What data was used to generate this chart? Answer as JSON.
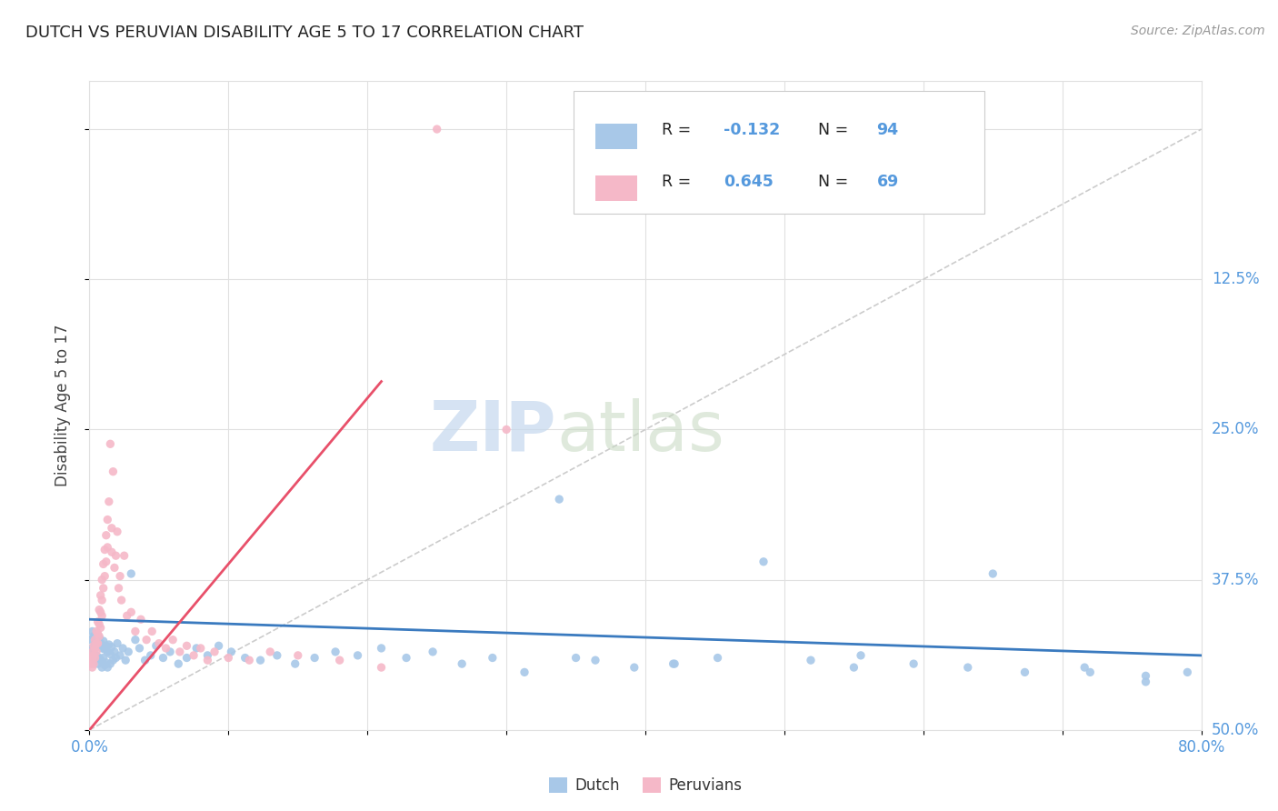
{
  "title": "DUTCH VS PERUVIAN DISABILITY AGE 5 TO 17 CORRELATION CHART",
  "source": "Source: ZipAtlas.com",
  "ylabel": "Disability Age 5 to 17",
  "xlim": [
    0.0,
    0.8
  ],
  "ylim": [
    0.0,
    0.54
  ],
  "dutch_color": "#a8c8e8",
  "peruvian_color": "#f5b8c8",
  "dutch_line_color": "#3a7abf",
  "peruvian_line_color": "#e8506a",
  "bg_color": "#ffffff",
  "grid_color": "#e0e0e0",
  "tick_color": "#5599dd",
  "dutch_scatter_x": [
    0.001,
    0.002,
    0.002,
    0.003,
    0.003,
    0.004,
    0.004,
    0.005,
    0.005,
    0.006,
    0.006,
    0.007,
    0.007,
    0.008,
    0.008,
    0.009,
    0.009,
    0.01,
    0.01,
    0.011,
    0.011,
    0.012,
    0.012,
    0.013,
    0.013,
    0.014,
    0.015,
    0.015,
    0.016,
    0.017,
    0.018,
    0.019,
    0.02,
    0.022,
    0.024,
    0.026,
    0.028,
    0.03,
    0.033,
    0.036,
    0.04,
    0.044,
    0.048,
    0.053,
    0.058,
    0.064,
    0.07,
    0.077,
    0.085,
    0.093,
    0.102,
    0.112,
    0.123,
    0.135,
    0.148,
    0.162,
    0.177,
    0.193,
    0.21,
    0.228,
    0.247,
    0.268,
    0.29,
    0.313,
    0.338,
    0.364,
    0.392,
    0.421,
    0.452,
    0.485,
    0.519,
    0.555,
    0.593,
    0.632,
    0.673,
    0.716,
    0.76,
    0.79,
    0.35,
    0.42,
    0.55,
    0.65,
    0.72,
    0.76
  ],
  "dutch_scatter_y": [
    0.075,
    0.082,
    0.068,
    0.078,
    0.065,
    0.071,
    0.058,
    0.073,
    0.062,
    0.07,
    0.055,
    0.077,
    0.06,
    0.072,
    0.058,
    0.068,
    0.052,
    0.074,
    0.06,
    0.067,
    0.054,
    0.07,
    0.056,
    0.065,
    0.052,
    0.071,
    0.063,
    0.055,
    0.069,
    0.058,
    0.065,
    0.06,
    0.072,
    0.062,
    0.068,
    0.058,
    0.065,
    0.13,
    0.075,
    0.068,
    0.058,
    0.062,
    0.07,
    0.06,
    0.065,
    0.055,
    0.06,
    0.068,
    0.062,
    0.07,
    0.065,
    0.06,
    0.058,
    0.062,
    0.055,
    0.06,
    0.065,
    0.062,
    0.068,
    0.06,
    0.065,
    0.055,
    0.06,
    0.048,
    0.192,
    0.058,
    0.052,
    0.055,
    0.06,
    0.14,
    0.058,
    0.062,
    0.055,
    0.052,
    0.048,
    0.052,
    0.04,
    0.048,
    0.06,
    0.055,
    0.052,
    0.13,
    0.048,
    0.045
  ],
  "peruvian_scatter_x": [
    0.001,
    0.001,
    0.002,
    0.002,
    0.002,
    0.003,
    0.003,
    0.003,
    0.004,
    0.004,
    0.004,
    0.005,
    0.005,
    0.005,
    0.006,
    0.006,
    0.006,
    0.007,
    0.007,
    0.007,
    0.008,
    0.008,
    0.008,
    0.009,
    0.009,
    0.009,
    0.01,
    0.01,
    0.011,
    0.011,
    0.012,
    0.012,
    0.013,
    0.013,
    0.014,
    0.015,
    0.016,
    0.016,
    0.017,
    0.018,
    0.019,
    0.02,
    0.021,
    0.022,
    0.023,
    0.025,
    0.027,
    0.03,
    0.033,
    0.037,
    0.041,
    0.045,
    0.05,
    0.055,
    0.06,
    0.065,
    0.07,
    0.075,
    0.08,
    0.085,
    0.09,
    0.1,
    0.115,
    0.13,
    0.15,
    0.18,
    0.21,
    0.25,
    0.3
  ],
  "peruvian_scatter_y": [
    0.06,
    0.055,
    0.065,
    0.058,
    0.052,
    0.07,
    0.062,
    0.055,
    0.075,
    0.068,
    0.06,
    0.082,
    0.072,
    0.065,
    0.09,
    0.08,
    0.072,
    0.1,
    0.088,
    0.078,
    0.112,
    0.098,
    0.085,
    0.125,
    0.108,
    0.095,
    0.138,
    0.118,
    0.15,
    0.128,
    0.162,
    0.14,
    0.175,
    0.152,
    0.19,
    0.238,
    0.168,
    0.148,
    0.215,
    0.135,
    0.145,
    0.165,
    0.118,
    0.128,
    0.108,
    0.145,
    0.095,
    0.098,
    0.082,
    0.092,
    0.075,
    0.082,
    0.072,
    0.068,
    0.075,
    0.065,
    0.07,
    0.062,
    0.068,
    0.058,
    0.065,
    0.06,
    0.058,
    0.065,
    0.062,
    0.058,
    0.052,
    0.5,
    0.25
  ],
  "dutch_line_x": [
    0.0,
    0.8
  ],
  "dutch_line_y": [
    0.092,
    0.062
  ],
  "peruvian_line_x": [
    0.0,
    0.21
  ],
  "peruvian_line_y": [
    0.0,
    0.29
  ],
  "diag_line_x": [
    0.0,
    0.8
  ],
  "diag_line_y": [
    0.0,
    0.5
  ]
}
